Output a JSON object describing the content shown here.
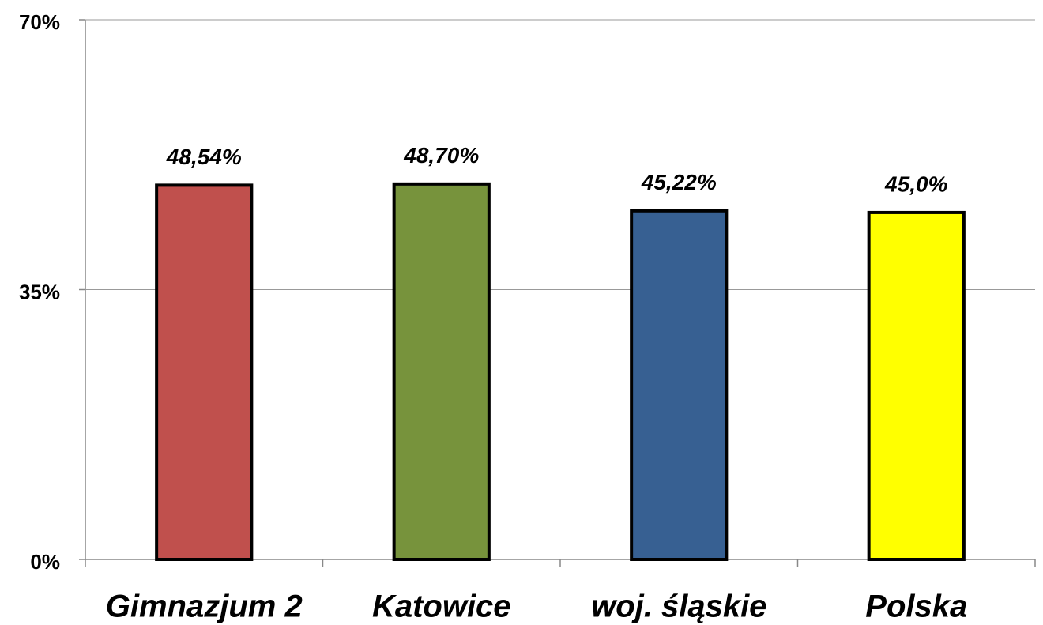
{
  "chart_data": {
    "type": "bar",
    "categories": [
      "Gimnazjum 2",
      "Katowice",
      "woj. śląskie",
      "Polska"
    ],
    "values": [
      48.54,
      48.7,
      45.22,
      45.0
    ],
    "value_labels": [
      "48,54%",
      "48,70%",
      "45,22%",
      "45,0%"
    ],
    "colors": [
      "#c0504d",
      "#77933c",
      "#376092",
      "#ffff00"
    ],
    "ylim": [
      0,
      70
    ],
    "yticks": [
      {
        "value": 0,
        "label": "0%"
      },
      {
        "value": 35,
        "label": "35%"
      },
      {
        "value": 70,
        "label": "70%"
      }
    ],
    "grid": true
  }
}
